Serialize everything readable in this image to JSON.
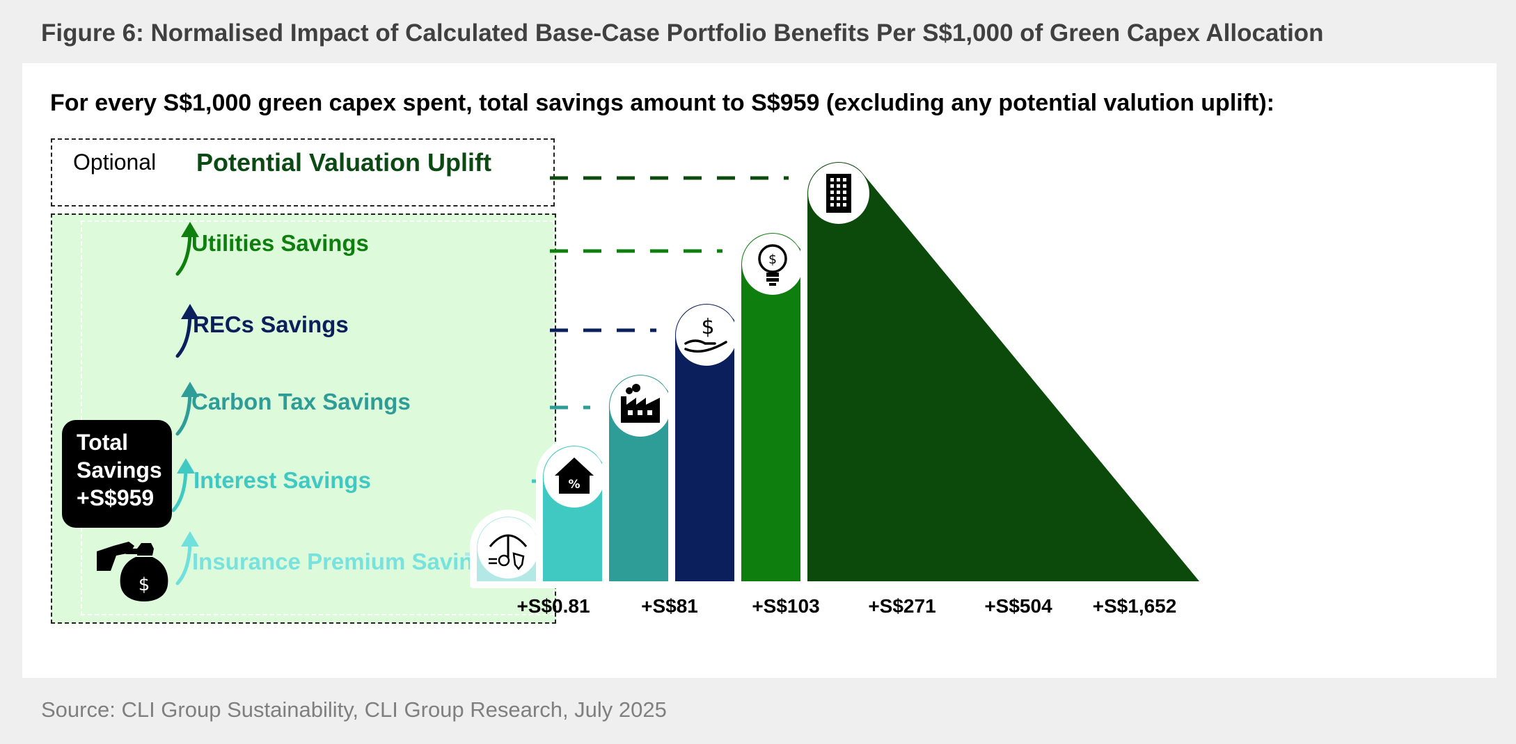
{
  "figure_title": "Figure 6: Normalised Impact of Calculated Base-Case Portfolio Benefits Per S$1,000 of Green Capex Allocation",
  "headline": "For every S$1,000 green capex spent, total savings amount to S$959 (excluding any potential valution uplift):",
  "optional_label": "Optional",
  "total_badge": {
    "line1": "Total",
    "line2": "Savings",
    "line3": "+S$959"
  },
  "source": "Source: CLI Group Sustainability, CLI Group Research, July 2025",
  "colors": {
    "insurance": "#b3e8e6",
    "interest": "#40c9c3",
    "carbon": "#2e9c97",
    "recs": "#0a1f5c",
    "utilities": "#0e7f0e",
    "uplift": "#0c4a0c"
  },
  "chart_data": {
    "type": "bar",
    "title": "Normalised Impact of Calculated Base-Case Portfolio Benefits Per S$1,000 of Green Capex Allocation",
    "unit": "S$ per S$1,000 green capex",
    "categories": [
      "Insurance Premium Savings",
      "Interest Savings",
      "Carbon Tax Savings",
      "RECs Savings",
      "Utilities Savings",
      "Potential Valuation Uplift"
    ],
    "values": [
      0.81,
      81,
      103,
      271,
      504,
      1652
    ],
    "value_labels": [
      "+S$0.81",
      "+S$81",
      "+S$103",
      "+S$271",
      "+S$504",
      "+S$1,652"
    ],
    "icons": [
      "umbrella-shield-icon",
      "house-percent-icon",
      "factory-icon",
      "hand-dollar-icon",
      "lightbulb-dollar-icon",
      "building-icon"
    ],
    "optional": [
      false,
      false,
      false,
      false,
      false,
      true
    ],
    "total_savings": 959,
    "total_savings_label": "+S$959"
  }
}
